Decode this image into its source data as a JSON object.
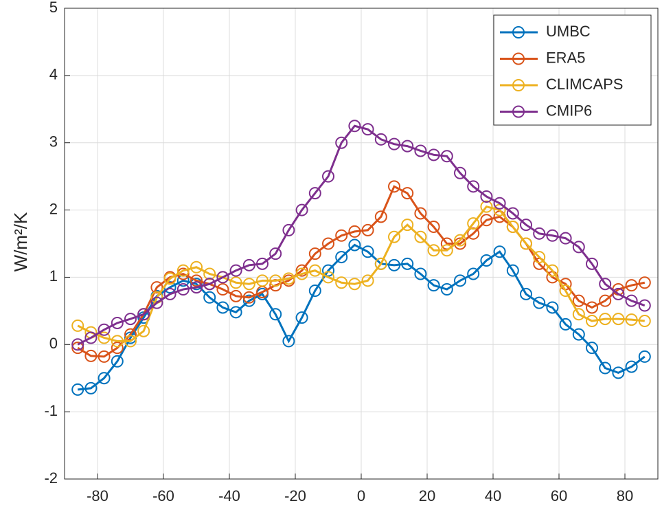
{
  "chart_data": {
    "type": "line",
    "ylabel": "W/m²/K",
    "x": [
      -86,
      -82,
      -78,
      -74,
      -70,
      -66,
      -62,
      -58,
      -54,
      -50,
      -46,
      -42,
      -38,
      -34,
      -30,
      -26,
      -22,
      -18,
      -14,
      -10,
      -6,
      -2,
      2,
      6,
      10,
      14,
      18,
      22,
      26,
      30,
      34,
      38,
      42,
      46,
      50,
      54,
      58,
      62,
      66,
      70,
      74,
      78,
      82,
      86
    ],
    "series": [
      {
        "name": "UMBC",
        "color": "#0072BD",
        "values": [
          -0.67,
          -0.65,
          -0.5,
          -0.25,
          0.1,
          0.4,
          0.72,
          0.85,
          0.95,
          0.9,
          0.7,
          0.55,
          0.48,
          0.65,
          0.75,
          0.45,
          0.05,
          0.4,
          0.8,
          1.1,
          1.3,
          1.48,
          1.38,
          1.2,
          1.18,
          1.2,
          1.05,
          0.88,
          0.82,
          0.95,
          1.05,
          1.25,
          1.38,
          1.1,
          0.75,
          0.62,
          0.55,
          0.3,
          0.15,
          -0.05,
          -0.35,
          -0.42,
          -0.33,
          -0.18
        ]
      },
      {
        "name": "ERA5",
        "color": "#D95319",
        "values": [
          -0.05,
          -0.17,
          -0.18,
          -0.05,
          0.15,
          0.45,
          0.85,
          1.0,
          1.05,
          0.95,
          0.9,
          0.82,
          0.72,
          0.7,
          0.78,
          0.88,
          0.95,
          1.1,
          1.35,
          1.5,
          1.62,
          1.68,
          1.7,
          1.9,
          2.35,
          2.25,
          1.95,
          1.75,
          1.5,
          1.5,
          1.65,
          1.85,
          1.9,
          1.75,
          1.5,
          1.2,
          1.0,
          0.9,
          0.65,
          0.55,
          0.65,
          0.82,
          0.88,
          0.92
        ]
      },
      {
        "name": "CLIMCAPS",
        "color": "#EDB120",
        "values": [
          0.28,
          0.18,
          0.1,
          0.05,
          0.05,
          0.2,
          0.7,
          0.98,
          1.1,
          1.15,
          1.05,
          1.0,
          0.92,
          0.9,
          0.95,
          0.95,
          0.98,
          1.05,
          1.1,
          1.0,
          0.92,
          0.9,
          0.95,
          1.2,
          1.6,
          1.78,
          1.6,
          1.4,
          1.4,
          1.55,
          1.8,
          2.05,
          2.0,
          1.75,
          1.5,
          1.3,
          1.1,
          0.8,
          0.45,
          0.35,
          0.38,
          0.38,
          0.37,
          0.35
        ]
      },
      {
        "name": "CMIP6",
        "color": "#7E2F8E",
        "values": [
          0.0,
          0.1,
          0.22,
          0.32,
          0.38,
          0.45,
          0.62,
          0.75,
          0.82,
          0.85,
          0.9,
          1.0,
          1.1,
          1.18,
          1.2,
          1.35,
          1.7,
          2.0,
          2.25,
          2.5,
          3.0,
          3.25,
          3.2,
          3.05,
          2.98,
          2.95,
          2.88,
          2.82,
          2.8,
          2.55,
          2.35,
          2.2,
          2.1,
          1.95,
          1.78,
          1.65,
          1.62,
          1.58,
          1.45,
          1.2,
          0.9,
          0.75,
          0.65,
          0.58
        ]
      }
    ],
    "xlim": [
      -90,
      90
    ],
    "xticks": [
      -80,
      -60,
      -40,
      -20,
      0,
      20,
      40,
      60,
      80
    ],
    "ylim": [
      -2,
      5
    ],
    "yticks": [
      -2,
      -1,
      0,
      1,
      2,
      3,
      4,
      5
    ],
    "grid": true,
    "legend": "northeast"
  }
}
